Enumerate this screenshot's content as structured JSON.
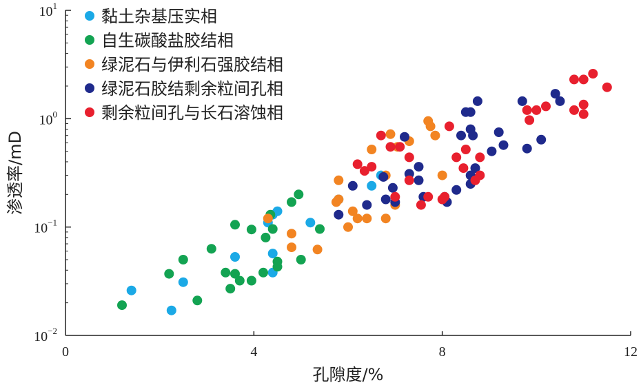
{
  "chart_data": {
    "type": "scatter",
    "xlabel": "孔隙度/%",
    "ylabel": "渗透率/mD",
    "xlim": [
      0,
      12
    ],
    "ylim": [
      0.01,
      10
    ],
    "yscale": "log",
    "grid": false,
    "legend_position": "top-left",
    "x_ticks": [
      "0",
      "4",
      "8",
      "12"
    ],
    "y_ticks": [
      {
        "base": "10",
        "exp": "−2"
      },
      {
        "base": "10",
        "exp": "−1"
      },
      {
        "base": "10",
        "exp": "0"
      },
      {
        "base": "10",
        "exp": "1"
      }
    ],
    "series": [
      {
        "name": "黏土杂基压实相",
        "color": "#1BA9E6",
        "points": [
          [
            1.4,
            0.026
          ],
          [
            2.25,
            0.017
          ],
          [
            2.5,
            0.031
          ],
          [
            3.6,
            0.053
          ],
          [
            4.3,
            0.11
          ],
          [
            4.4,
            0.038
          ],
          [
            4.4,
            0.057
          ],
          [
            4.5,
            0.14
          ],
          [
            5.2,
            0.11
          ],
          [
            5.8,
            0.18
          ],
          [
            6.5,
            0.24
          ],
          [
            6.7,
            0.3
          ],
          [
            4.4,
            0.13
          ]
        ]
      },
      {
        "name": "自生碳酸盐胶结相",
        "color": "#13A352",
        "points": [
          [
            1.2,
            0.019
          ],
          [
            2.2,
            0.037
          ],
          [
            2.5,
            0.05
          ],
          [
            2.8,
            0.021
          ],
          [
            3.1,
            0.063
          ],
          [
            3.4,
            0.038
          ],
          [
            3.5,
            0.027
          ],
          [
            3.6,
            0.037
          ],
          [
            3.6,
            0.105
          ],
          [
            3.7,
            0.032
          ],
          [
            3.95,
            0.032
          ],
          [
            4.2,
            0.038
          ],
          [
            4.25,
            0.08
          ],
          [
            4.4,
            0.096
          ],
          [
            4.5,
            0.048
          ],
          [
            4.5,
            0.043
          ],
          [
            4.8,
            0.17
          ],
          [
            4.95,
            0.2
          ],
          [
            5.0,
            0.05
          ],
          [
            5.4,
            0.096
          ],
          [
            4.35,
            0.13
          ],
          [
            3.95,
            0.095
          ]
        ]
      },
      {
        "name": "绿泥石与伊利石强胶结相",
        "color": "#F28422",
        "points": [
          [
            4.3,
            0.12
          ],
          [
            4.8,
            0.087
          ],
          [
            4.8,
            0.065
          ],
          [
            5.35,
            0.062
          ],
          [
            5.75,
            0.17
          ],
          [
            5.8,
            0.27
          ],
          [
            6.0,
            0.1
          ],
          [
            6.1,
            0.14
          ],
          [
            6.2,
            0.12
          ],
          [
            6.4,
            0.12
          ],
          [
            6.5,
            0.52
          ],
          [
            6.8,
            0.12
          ],
          [
            6.9,
            0.72
          ],
          [
            7.0,
            0.16
          ],
          [
            7.05,
            0.55
          ],
          [
            7.3,
            0.62
          ],
          [
            7.7,
            0.95
          ],
          [
            7.75,
            0.85
          ],
          [
            7.85,
            0.7
          ],
          [
            8.0,
            0.3
          ],
          [
            5.8,
            0.18
          ],
          [
            6.8,
            0.3
          ]
        ]
      },
      {
        "name": "绿泥石胶结剩余粒间孔相",
        "color": "#1F2A8C",
        "points": [
          [
            5.8,
            0.13
          ],
          [
            6.1,
            0.24
          ],
          [
            6.4,
            0.16
          ],
          [
            6.75,
            0.29
          ],
          [
            6.8,
            0.18
          ],
          [
            6.95,
            0.23
          ],
          [
            7.0,
            0.17
          ],
          [
            7.2,
            0.68
          ],
          [
            7.3,
            0.31
          ],
          [
            7.5,
            0.36
          ],
          [
            7.5,
            0.27
          ],
          [
            7.6,
            0.19
          ],
          [
            8.05,
            0.19
          ],
          [
            8.1,
            0.17
          ],
          [
            8.3,
            0.22
          ],
          [
            8.4,
            0.7
          ],
          [
            8.5,
            1.15
          ],
          [
            8.6,
            1.15
          ],
          [
            8.6,
            0.8
          ],
          [
            8.65,
            0.7
          ],
          [
            8.6,
            0.25
          ],
          [
            8.6,
            0.3
          ],
          [
            8.7,
            0.35
          ],
          [
            8.75,
            1.45
          ],
          [
            9.05,
            0.5
          ],
          [
            9.2,
            0.75
          ],
          [
            9.3,
            0.57
          ],
          [
            9.7,
            1.45
          ],
          [
            9.8,
            0.53
          ],
          [
            10.1,
            0.64
          ],
          [
            10.4,
            1.7
          ],
          [
            10.5,
            1.45
          ]
        ]
      },
      {
        "name": "剩余粒间孔与长石溶蚀相",
        "color": "#E8202E",
        "points": [
          [
            6.2,
            0.38
          ],
          [
            6.35,
            0.33
          ],
          [
            6.5,
            0.36
          ],
          [
            6.7,
            0.7
          ],
          [
            6.9,
            0.55
          ],
          [
            7.0,
            0.19
          ],
          [
            7.1,
            0.55
          ],
          [
            7.3,
            0.44
          ],
          [
            7.3,
            0.27
          ],
          [
            7.55,
            0.16
          ],
          [
            7.7,
            0.19
          ],
          [
            8.0,
            0.18
          ],
          [
            8.05,
            0.19
          ],
          [
            8.15,
            0.85
          ],
          [
            8.3,
            0.44
          ],
          [
            8.45,
            0.35
          ],
          [
            8.5,
            0.52
          ],
          [
            8.7,
            0.27
          ],
          [
            8.8,
            0.3
          ],
          [
            8.8,
            0.44
          ],
          [
            9.8,
            1.2
          ],
          [
            9.85,
            0.97
          ],
          [
            10.0,
            1.2
          ],
          [
            10.2,
            1.3
          ],
          [
            10.8,
            2.3
          ],
          [
            10.8,
            1.2
          ],
          [
            11.0,
            2.3
          ],
          [
            11.0,
            1.35
          ],
          [
            11.0,
            1.1
          ],
          [
            11.2,
            2.6
          ],
          [
            11.5,
            1.95
          ]
        ]
      }
    ]
  }
}
